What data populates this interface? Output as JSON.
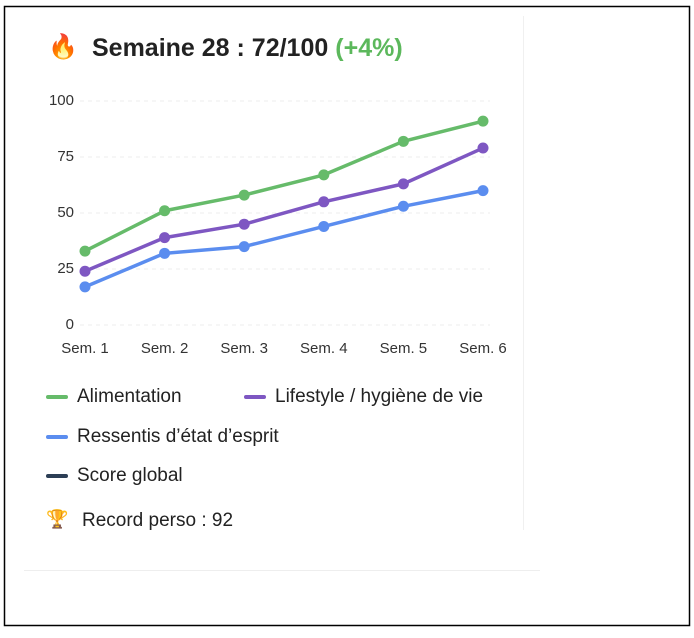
{
  "header": {
    "icon": "🔥",
    "title": "Semaine 28 : 72/100",
    "change": "(+4%)"
  },
  "chart_data": {
    "type": "line",
    "categories": [
      "Sem. 1",
      "Sem. 2",
      "Sem. 3",
      "Sem. 4",
      "Sem. 5",
      "Sem. 6"
    ],
    "series": [
      {
        "name": "Alimentation",
        "color": "#66bb6a",
        "values": [
          33,
          51,
          58,
          67,
          82,
          91
        ]
      },
      {
        "name": "Lifestyle / hygiène de vie",
        "color": "#7e57c2",
        "values": [
          24,
          39,
          45,
          55,
          63,
          79
        ]
      },
      {
        "name": "Ressentis d’état d’esprit",
        "color": "#5b8def",
        "values": [
          17,
          32,
          35,
          44,
          53,
          60
        ]
      },
      {
        "name": "Score global",
        "color": "#2c3e55",
        "values": [
          null,
          null,
          null,
          null,
          null,
          null
        ]
      }
    ],
    "ylim": [
      0,
      100
    ],
    "yticks": [
      0,
      25,
      50,
      75,
      100
    ],
    "grid": true
  },
  "record": {
    "icon": "🏆",
    "text": "Record perso : 92"
  }
}
